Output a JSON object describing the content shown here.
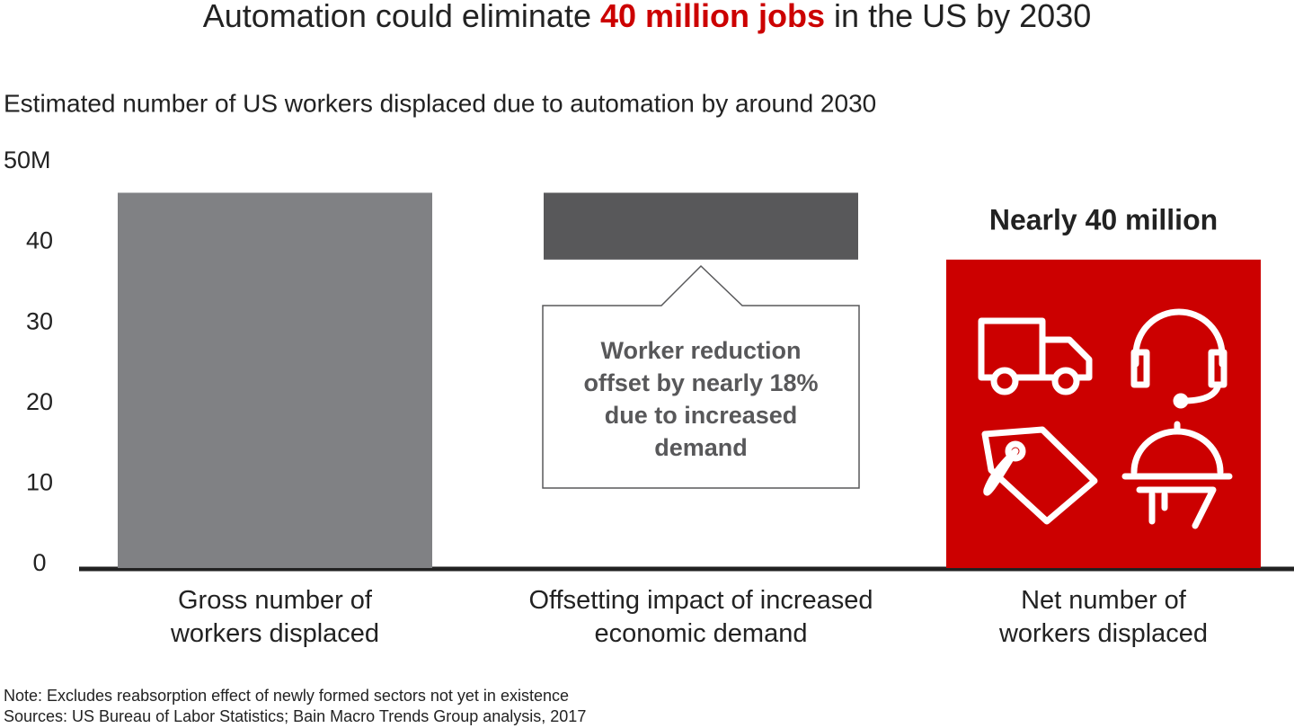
{
  "chart_data": {
    "type": "waterfall",
    "title": [
      "Automation could eliminate ",
      "40 million jobs",
      " in the US by 2030"
    ],
    "title_highlight_color": "#cc0000",
    "subtitle": "Estimated number of US workers displaced  due to automation by around 2030",
    "categories": [
      "Gross number of workers displaced",
      "Offsetting impact of increased economic demand",
      "Net number of workers displaced"
    ],
    "values": [
      46.6,
      -8.3,
      38.3
    ],
    "measure": [
      "absolute",
      "relative",
      "total"
    ],
    "colors": [
      "#808184",
      "#58585a",
      "#cc0000"
    ],
    "ylim": [
      0,
      50
    ],
    "yticks": [
      0,
      10,
      20,
      30,
      40,
      {
        "value": 50,
        "label": "50M"
      }
    ],
    "annotations": [
      "Worker reduction offset by nearly 18% due to increased demand",
      "Nearly 40 million"
    ],
    "notes": [
      "Note: Excludes reabsorption effect of newly formed sectors not yet in existence",
      "Sources: US Bureau of Labor Statistics; Bain Macro Trends Group analysis, 2017"
    ]
  }
}
